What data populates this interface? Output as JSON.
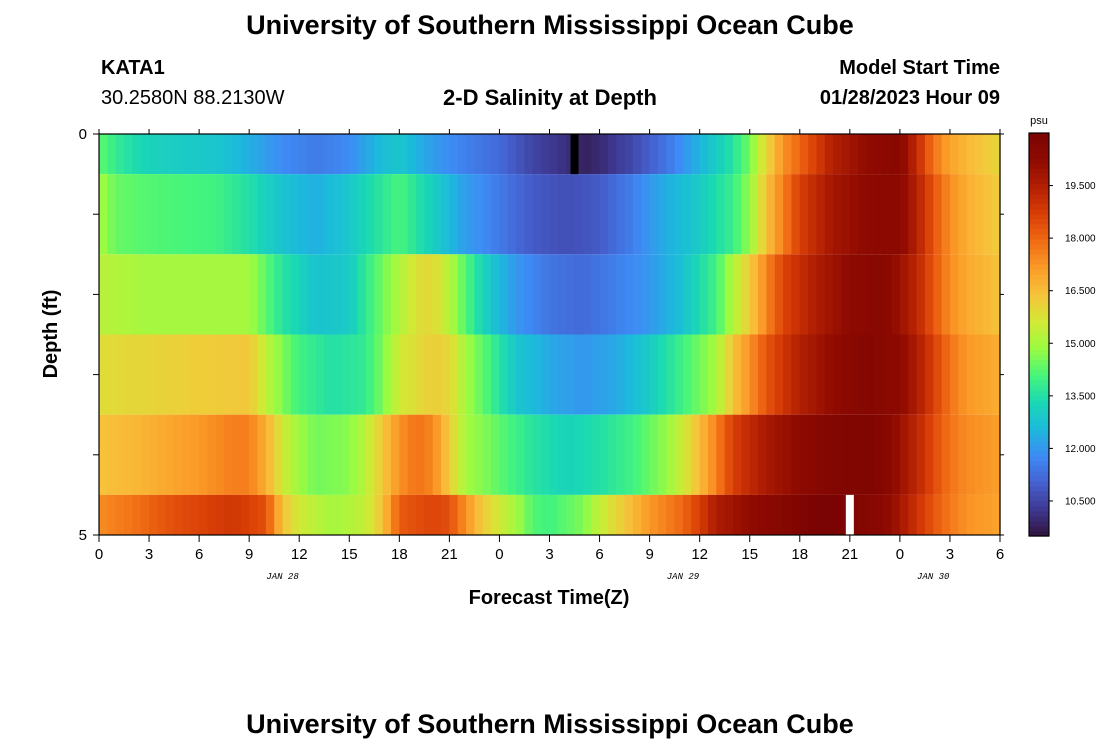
{
  "header": {
    "title": "University of Southern Mississippi Ocean Cube",
    "station_id": "KATA1",
    "station_coords": "30.2580N  88.2130W",
    "plot_title": "2-D Salinity at Depth",
    "model_start_label": "Model Start Time",
    "model_start_value": "01/28/2023 Hour 09"
  },
  "footer": {
    "title": "University of Southern Mississippi Ocean Cube"
  },
  "chart_data": {
    "type": "heatmap",
    "title": "2-D Salinity at Depth",
    "xlabel": "Forecast Time(Z)",
    "ylabel": "Depth (ft)",
    "x_tick_labels": [
      "0",
      "3",
      "6",
      "9",
      "12",
      "15",
      "18",
      "21",
      "0",
      "3",
      "6",
      "9",
      "12",
      "15",
      "18",
      "21",
      "0",
      "3",
      "6"
    ],
    "date_labels": [
      {
        "label": "JAN 28",
        "x_hours": 11
      },
      {
        "label": "JAN 29",
        "x_hours": 35
      },
      {
        "label": "JAN 30",
        "x_hours": 50
      }
    ],
    "xlim_hours": [
      0,
      54
    ],
    "y_tick_labels": [
      "0",
      "5"
    ],
    "ylim": [
      0,
      5
    ],
    "colorbar": {
      "unit": "psu",
      "range": [
        9.5,
        21.0
      ],
      "ticks": [
        "10.500",
        "12.000",
        "13.500",
        "15.000",
        "16.500",
        "18.000",
        "19.500"
      ],
      "colors": [
        "#30123b",
        "#3e3891",
        "#4561d0",
        "#3e8bf5",
        "#1cb9dc",
        "#1ad8b4",
        "#47f57a",
        "#9bfb41",
        "#d2e935",
        "#f7c33b",
        "#fb9b28",
        "#f06a14",
        "#d83e06",
        "#b32003",
        "#8f0a01",
        "#7a0403"
      ]
    },
    "layers": [
      {
        "depth_range": [
          0,
          0.5
        ],
        "nodes": [
          [
            0,
            14.3
          ],
          [
            1.5,
            13.6
          ],
          [
            3,
            13.2
          ],
          [
            5,
            13.0
          ],
          [
            7,
            12.9
          ],
          [
            9,
            12.4
          ],
          [
            11,
            11.8
          ],
          [
            13,
            11.5
          ],
          [
            15,
            11.8
          ],
          [
            17,
            12.7
          ],
          [
            18,
            12.9
          ],
          [
            20,
            12.1
          ],
          [
            22,
            11.6
          ],
          [
            24,
            11.2
          ],
          [
            26,
            10.5
          ],
          [
            28,
            10.1
          ],
          [
            29,
            9.8
          ],
          [
            30,
            10.0
          ],
          [
            32,
            10.6
          ],
          [
            34,
            11.4
          ],
          [
            36,
            12.5
          ],
          [
            38,
            13.6
          ],
          [
            39,
            14.5
          ],
          [
            40,
            16.0
          ],
          [
            41,
            17.3
          ],
          [
            42,
            18.0
          ],
          [
            44,
            19.5
          ],
          [
            46,
            20.2
          ],
          [
            48,
            20.5
          ],
          [
            49,
            19.2
          ],
          [
            50,
            17.8
          ],
          [
            51,
            17.0
          ],
          [
            52,
            16.6
          ],
          [
            54,
            16.0
          ]
        ]
      },
      {
        "depth_range": [
          0.5,
          1.5
        ],
        "nodes": [
          [
            0,
            15.0
          ],
          [
            1,
            14.4
          ],
          [
            3,
            14.2
          ],
          [
            5,
            14.1
          ],
          [
            7,
            14.0
          ],
          [
            9,
            13.5
          ],
          [
            11,
            12.8
          ],
          [
            13,
            12.4
          ],
          [
            15,
            12.9
          ],
          [
            17,
            13.7
          ],
          [
            18,
            14.1
          ],
          [
            20,
            13.1
          ],
          [
            22,
            12.1
          ],
          [
            24,
            11.5
          ],
          [
            26,
            10.9
          ],
          [
            28,
            10.7
          ],
          [
            30,
            10.9
          ],
          [
            32,
            11.6
          ],
          [
            34,
            12.4
          ],
          [
            36,
            13.0
          ],
          [
            38,
            13.9
          ],
          [
            39,
            14.8
          ],
          [
            40,
            16.4
          ],
          [
            41,
            17.6
          ],
          [
            42,
            18.7
          ],
          [
            44,
            19.8
          ],
          [
            46,
            20.3
          ],
          [
            48,
            20.4
          ],
          [
            49,
            19.5
          ],
          [
            50,
            18.3
          ],
          [
            51,
            17.4
          ],
          [
            52,
            16.8
          ],
          [
            54,
            16.2
          ]
        ]
      },
      {
        "depth_range": [
          1.5,
          2.5
        ],
        "nodes": [
          [
            0,
            15.3
          ],
          [
            1,
            15.2
          ],
          [
            3,
            15.0
          ],
          [
            5,
            15.0
          ],
          [
            7,
            15.0
          ],
          [
            9,
            15.0
          ],
          [
            11,
            13.6
          ],
          [
            13,
            12.8
          ],
          [
            15,
            13.0
          ],
          [
            17,
            14.5
          ],
          [
            19,
            15.8
          ],
          [
            20,
            16.0
          ],
          [
            21,
            15.2
          ],
          [
            23,
            13.2
          ],
          [
            25,
            12.0
          ],
          [
            27,
            11.4
          ],
          [
            29,
            11.2
          ],
          [
            31,
            11.6
          ],
          [
            33,
            12.0
          ],
          [
            35,
            12.8
          ],
          [
            37,
            14.0
          ],
          [
            38,
            15.2
          ],
          [
            39,
            16.2
          ],
          [
            40,
            17.5
          ],
          [
            41,
            18.6
          ],
          [
            43,
            19.6
          ],
          [
            45,
            20.3
          ],
          [
            47,
            20.5
          ],
          [
            48,
            20.0
          ],
          [
            49,
            19.3
          ],
          [
            50,
            18.3
          ],
          [
            51,
            17.4
          ],
          [
            52,
            16.9
          ],
          [
            54,
            16.4
          ]
        ]
      },
      {
        "depth_range": [
          2.5,
          3.5
        ],
        "nodes": [
          [
            0,
            15.9
          ],
          [
            2,
            16.0
          ],
          [
            4,
            16.1
          ],
          [
            6,
            16.2
          ],
          [
            9,
            16.3
          ],
          [
            10,
            15.4
          ],
          [
            11,
            14.6
          ],
          [
            12,
            14.0
          ],
          [
            14,
            13.5
          ],
          [
            16,
            13.8
          ],
          [
            17,
            14.6
          ],
          [
            18,
            15.6
          ],
          [
            20,
            16.2
          ],
          [
            21,
            16.0
          ],
          [
            22,
            15.0
          ],
          [
            24,
            13.6
          ],
          [
            25,
            12.9
          ],
          [
            27,
            12.3
          ],
          [
            29,
            12.0
          ],
          [
            31,
            12.3
          ],
          [
            33,
            13.0
          ],
          [
            35,
            14.0
          ],
          [
            37,
            15.0
          ],
          [
            38,
            16.4
          ],
          [
            39,
            17.3
          ],
          [
            40,
            18.3
          ],
          [
            42,
            19.5
          ],
          [
            44,
            20.2
          ],
          [
            46,
            20.6
          ],
          [
            48,
            20.3
          ],
          [
            49,
            19.6
          ],
          [
            50,
            18.7
          ],
          [
            51,
            17.8
          ],
          [
            52,
            17.2
          ],
          [
            54,
            16.8
          ]
        ]
      },
      {
        "depth_range": [
          3.5,
          4.5
        ],
        "nodes": [
          [
            0,
            16.4
          ],
          [
            2,
            16.6
          ],
          [
            4,
            16.9
          ],
          [
            6,
            17.2
          ],
          [
            8,
            17.6
          ],
          [
            9,
            17.6
          ],
          [
            10,
            16.8
          ],
          [
            11,
            15.6
          ],
          [
            12,
            14.9
          ],
          [
            13,
            14.5
          ],
          [
            15,
            14.7
          ],
          [
            16,
            15.3
          ],
          [
            17,
            16.3
          ],
          [
            18,
            17.3
          ],
          [
            19,
            17.8
          ],
          [
            20,
            17.5
          ],
          [
            21,
            16.2
          ],
          [
            22,
            15.0
          ],
          [
            24,
            14.3
          ],
          [
            26,
            13.6
          ],
          [
            28,
            13.2
          ],
          [
            30,
            13.5
          ],
          [
            32,
            14.0
          ],
          [
            34,
            14.8
          ],
          [
            35,
            15.6
          ],
          [
            36,
            16.5
          ],
          [
            37,
            17.6
          ],
          [
            38,
            18.7
          ],
          [
            40,
            19.7
          ],
          [
            42,
            20.3
          ],
          [
            44,
            20.7
          ],
          [
            46,
            20.8
          ],
          [
            47,
            20.6
          ],
          [
            48,
            20.0
          ],
          [
            49,
            19.3
          ],
          [
            50,
            18.5
          ],
          [
            51,
            17.8
          ],
          [
            52,
            17.4
          ],
          [
            54,
            17.1
          ]
        ]
      },
      {
        "depth_range": [
          4.5,
          5.0
        ],
        "nodes": [
          [
            0,
            17.4
          ],
          [
            2,
            17.8
          ],
          [
            4,
            18.3
          ],
          [
            6,
            18.6
          ],
          [
            8,
            18.9
          ],
          [
            10,
            18.4
          ],
          [
            11,
            16.4
          ],
          [
            12,
            15.6
          ],
          [
            14,
            15.0
          ],
          [
            16,
            15.4
          ],
          [
            17,
            16.4
          ],
          [
            18,
            18.2
          ],
          [
            20,
            18.6
          ],
          [
            21,
            18.4
          ],
          [
            22,
            17.3
          ],
          [
            23,
            16.2
          ],
          [
            25,
            15.0
          ],
          [
            26,
            14.2
          ],
          [
            27,
            14.0
          ],
          [
            29,
            14.6
          ],
          [
            30,
            15.4
          ],
          [
            31,
            16.0
          ],
          [
            33,
            17.2
          ],
          [
            35,
            18.0
          ],
          [
            36,
            18.7
          ],
          [
            37,
            19.6
          ],
          [
            39,
            20.2
          ],
          [
            41,
            20.6
          ],
          [
            43,
            21.0
          ],
          [
            44,
            21.0
          ],
          [
            45,
            20.8
          ],
          [
            46,
            20.6
          ],
          [
            47,
            20.4
          ],
          [
            48,
            19.8
          ],
          [
            49,
            19.0
          ],
          [
            50,
            18.3
          ],
          [
            51,
            17.7
          ],
          [
            52,
            17.3
          ],
          [
            54,
            17.0
          ]
        ]
      }
    ],
    "missing_cells": [
      {
        "x_hours": 28.5,
        "depth_range": [
          0,
          0.5
        ],
        "color": "#000000"
      },
      {
        "x_hours": 45.0,
        "depth_range": [
          4.5,
          5.0
        ],
        "color": "#ffffff"
      }
    ]
  }
}
